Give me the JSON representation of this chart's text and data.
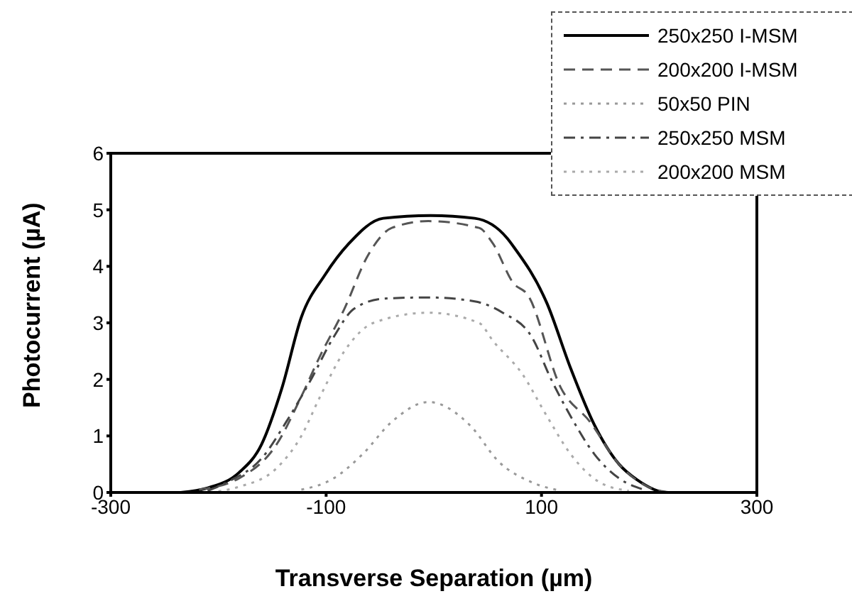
{
  "chart_data": {
    "type": "line",
    "xlabel": "Transverse Separation (µm)",
    "ylabel": "Photocurrent (µA)",
    "xlim": [
      -300,
      300
    ],
    "xticks": [
      -300,
      -100,
      100,
      300
    ],
    "ylim": [
      0,
      6
    ],
    "yticks": [
      0,
      1,
      2,
      3,
      4,
      5,
      6
    ],
    "grid": false,
    "legend": "top right",
    "marker": "none",
    "series": [
      {
        "name": "250x250 I-MSM",
        "color": "#000000",
        "line_style": "solid",
        "x": [
          -235,
          -210,
          -181,
          -160,
          -141,
          -123,
          -101,
          -79,
          -47,
          -3,
          38,
          68,
          74,
          105,
          127,
          149,
          172,
          189,
          216,
          240
        ],
        "values": [
          0,
          0.08,
          0.35,
          0.85,
          1.85,
          3.1,
          3.85,
          4.4,
          4.85,
          4.9,
          4.85,
          4.5,
          4.35,
          3.35,
          2.2,
          1.2,
          0.5,
          0.22,
          0,
          0
        ]
      },
      {
        "name": "200x200 I-MSM",
        "color": "#555555",
        "line_style": "dashed",
        "x": [
          -218,
          -181,
          -146,
          -123,
          -106,
          -83,
          -61,
          -39,
          -5,
          42,
          55,
          74,
          87,
          118,
          145,
          172,
          199,
          220
        ],
        "values": [
          0.05,
          0.25,
          0.85,
          1.7,
          2.4,
          3.25,
          4.2,
          4.68,
          4.8,
          4.68,
          4.4,
          3.7,
          3.5,
          1.85,
          1.25,
          0.5,
          0.1,
          0
        ]
      },
      {
        "name": "50x50 PIN",
        "color": "#999999",
        "line_style": "dotted",
        "x": [
          -123,
          -93,
          -66,
          -39,
          -5,
          34,
          60,
          91,
          118
        ],
        "values": [
          0.05,
          0.25,
          0.68,
          1.25,
          1.6,
          1.18,
          0.55,
          0.18,
          0.03
        ]
      },
      {
        "name": "250x250 MSM",
        "color": "#444444",
        "line_style": "dashdot",
        "x": [
          -210,
          -190,
          -160,
          -137,
          -114,
          -93,
          -74,
          -46,
          -5,
          38,
          64,
          91,
          109,
          127,
          149,
          172,
          195
        ],
        "values": [
          0.03,
          0.2,
          0.6,
          1.25,
          2.0,
          2.75,
          3.25,
          3.43,
          3.45,
          3.38,
          3.18,
          2.75,
          2.0,
          1.35,
          0.68,
          0.25,
          0.05
        ]
      },
      {
        "name": "200x200 MSM",
        "color": "#aaaaaa",
        "line_style": "dotted",
        "x": [
          -200,
          -181,
          -146,
          -123,
          -106,
          -83,
          -56,
          -5,
          42,
          55,
          82,
          105,
          127,
          154,
          181
        ],
        "values": [
          0.02,
          0.1,
          0.43,
          1.0,
          1.68,
          2.5,
          3.0,
          3.18,
          3.0,
          2.68,
          2.1,
          1.35,
          0.68,
          0.18,
          0.03
        ]
      }
    ]
  }
}
